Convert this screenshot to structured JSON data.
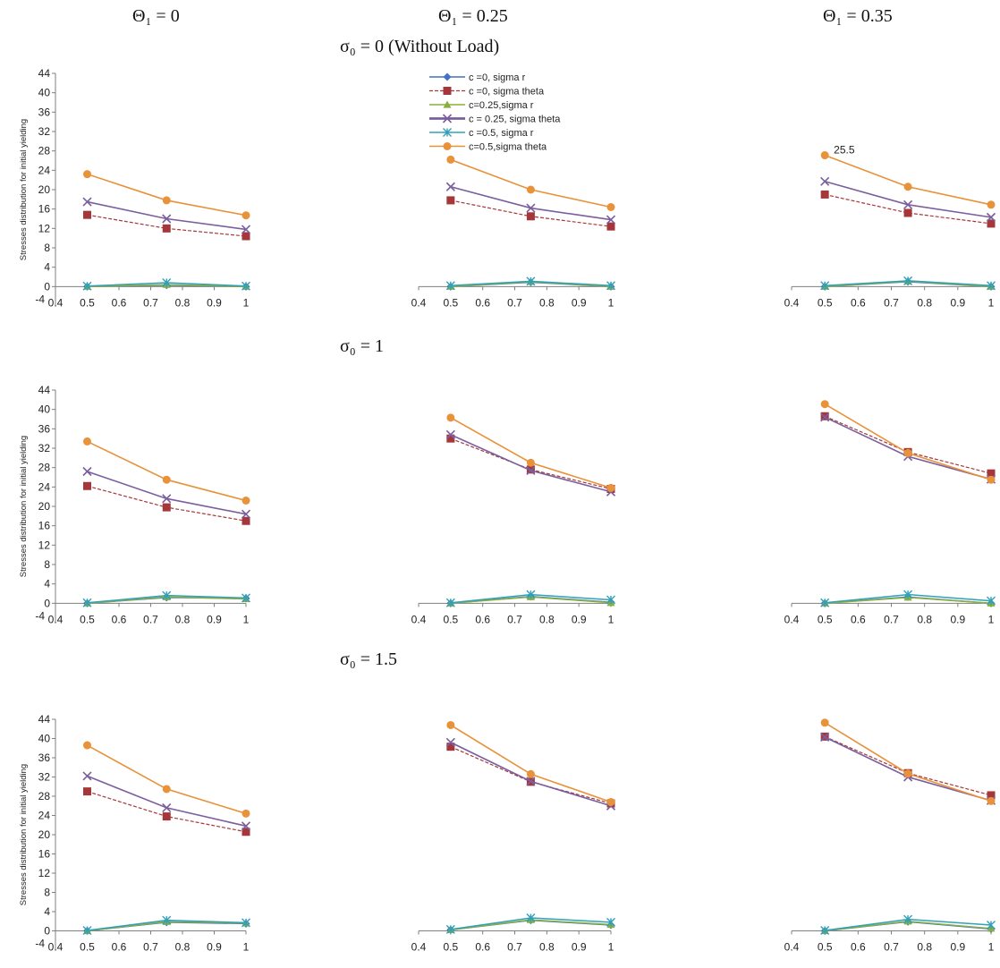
{
  "headers": {
    "col1": "Θ₁ = 0",
    "col2": "Θ₁ = 0.25",
    "col3": "Θ₁ = 0.35",
    "row1": "σ₀ = 0 (Without Load)",
    "row2": "σ₀ = 1",
    "row3": "σ₀ = 1.5"
  },
  "legend": [
    "c =0, sigma r",
    "c =0, sigma theta",
    "c=0.25,sigma r",
    "c = 0.25, sigma theta",
    "c =0.5, sigma r",
    "c=0.5,sigma theta"
  ],
  "series_style": [
    {
      "color": "#4472C4",
      "marker": "diamond",
      "dash": false,
      "width": 1.5
    },
    {
      "color": "#A5373A",
      "marker": "square",
      "dash": true,
      "width": 1.2
    },
    {
      "color": "#8AAF3C",
      "marker": "triangle",
      "dash": false,
      "width": 1.5
    },
    {
      "color": "#7A5E9E",
      "marker": "x",
      "dash": false,
      "width": 1.6
    },
    {
      "color": "#31A0B8",
      "marker": "star",
      "dash": false,
      "width": 1.5
    },
    {
      "color": "#E8923A",
      "marker": "circle",
      "dash": false,
      "width": 1.6
    }
  ],
  "chart_data": [
    {
      "type": "line",
      "x": [
        0.5,
        0.75,
        1
      ],
      "xlim": [
        0.4,
        1
      ],
      "ylim": [
        -4,
        44
      ],
      "xticks": [
        "0.4",
        "0.5",
        "0.6",
        "0.7",
        "0.8",
        "0.9",
        "1"
      ],
      "yticks": [
        "-4",
        "0",
        "4",
        "8",
        "12",
        "16",
        "20",
        "24",
        "28",
        "32",
        "36",
        "40",
        "44"
      ],
      "ylabel": "Stresses distribution   for initial  yielding",
      "series": [
        {
          "name": "c =0, sigma r",
          "values": [
            0,
            0.3,
            0
          ]
        },
        {
          "name": "c =0, sigma theta",
          "values": [
            14.8,
            12,
            10.4
          ]
        },
        {
          "name": "c=0.25,sigma r",
          "values": [
            0,
            0.4,
            0
          ]
        },
        {
          "name": "c = 0.25, sigma theta",
          "values": [
            17.5,
            14,
            11.8
          ]
        },
        {
          "name": "c =0.5, sigma r",
          "values": [
            0.1,
            0.8,
            0.1
          ]
        },
        {
          "name": "c=0.5,sigma theta",
          "values": [
            23.2,
            17.8,
            14.7
          ]
        }
      ],
      "annotation": ""
    },
    {
      "type": "line",
      "x": [
        0.5,
        0.75,
        1
      ],
      "xlim": [
        0.4,
        1
      ],
      "ylim": [
        -4,
        44
      ],
      "xticks": [
        "0.4",
        "0.5",
        "0.6",
        "0.7",
        "0.8",
        "0.9",
        "1"
      ],
      "yticks": [],
      "ylabel": "",
      "series": [
        {
          "name": "c =0, sigma r",
          "values": [
            0,
            0.9,
            0
          ]
        },
        {
          "name": "c =0, sigma theta",
          "values": [
            17.8,
            14.5,
            12.4
          ]
        },
        {
          "name": "c=0.25,sigma r",
          "values": [
            0,
            1,
            0
          ]
        },
        {
          "name": "c = 0.25, sigma theta",
          "values": [
            20.6,
            16.2,
            13.8
          ]
        },
        {
          "name": "c =0.5, sigma r",
          "values": [
            0.2,
            1.1,
            0.2
          ]
        },
        {
          "name": "c=0.5,sigma theta",
          "values": [
            26.2,
            20,
            16.4
          ]
        }
      ],
      "annotation": ""
    },
    {
      "type": "line",
      "x": [
        0.5,
        0.75,
        1
      ],
      "xlim": [
        0.4,
        1
      ],
      "ylim": [
        -4,
        44
      ],
      "xticks": [
        "0.4",
        "0.5",
        "0.6",
        "0.7",
        "0.8",
        "0.9",
        "1"
      ],
      "yticks": [],
      "ylabel": "",
      "series": [
        {
          "name": "c =0, sigma r",
          "values": [
            0,
            1,
            0
          ]
        },
        {
          "name": "c =0, sigma theta",
          "values": [
            19,
            15.2,
            13
          ]
        },
        {
          "name": "c=0.25,sigma r",
          "values": [
            0,
            1.1,
            0
          ]
        },
        {
          "name": "c = 0.25, sigma theta",
          "values": [
            21.7,
            16.9,
            14.3
          ]
        },
        {
          "name": "c =0.5, sigma r",
          "values": [
            0.2,
            1.2,
            0.2
          ]
        },
        {
          "name": "c=0.5,sigma theta",
          "values": [
            27.1,
            20.6,
            16.9
          ]
        }
      ],
      "annotation": "25.5"
    },
    {
      "type": "line",
      "x": [
        0.5,
        0.75,
        1
      ],
      "xlim": [
        0.4,
        1
      ],
      "ylim": [
        -4,
        44
      ],
      "xticks": [
        "0.4",
        "0.5",
        "0.6",
        "0.7",
        "0.8",
        "0.9",
        "1"
      ],
      "yticks": [
        "-4",
        "0",
        "4",
        "8",
        "12",
        "16",
        "20",
        "24",
        "28",
        "32",
        "36",
        "40",
        "44"
      ],
      "ylabel": "Stresses distribution for initial yielding",
      "series": [
        {
          "name": "c =0, sigma r",
          "values": [
            0,
            1.2,
            1
          ]
        },
        {
          "name": "c =0, sigma theta",
          "values": [
            24.2,
            19.8,
            17
          ]
        },
        {
          "name": "c=0.25,sigma r",
          "values": [
            0,
            1.3,
            0.9
          ]
        },
        {
          "name": "c = 0.25, sigma theta",
          "values": [
            27.2,
            21.6,
            18.4
          ]
        },
        {
          "name": "c =0.5, sigma r",
          "values": [
            0.1,
            1.6,
            1.1
          ]
        },
        {
          "name": "c=0.5,sigma theta",
          "values": [
            33.4,
            25.5,
            21.2
          ]
        }
      ],
      "annotation": ""
    },
    {
      "type": "line",
      "x": [
        0.5,
        0.75,
        1
      ],
      "xlim": [
        0.4,
        1
      ],
      "ylim": [
        -4,
        44
      ],
      "xticks": [
        "0.4",
        "0.5",
        "0.6",
        "0.7",
        "0.8",
        "0.9",
        "1"
      ],
      "yticks": [],
      "ylabel": "",
      "series": [
        {
          "name": "c =0, sigma r",
          "values": [
            0,
            1.4,
            0.2
          ]
        },
        {
          "name": "c =0, sigma theta",
          "values": [
            34,
            27.6,
            23.6
          ]
        },
        {
          "name": "c=0.25,sigma r",
          "values": [
            0,
            1.3,
            0.1
          ]
        },
        {
          "name": "c = 0.25, sigma theta",
          "values": [
            34.8,
            27.4,
            23
          ]
        },
        {
          "name": "c =0.5, sigma r",
          "values": [
            0.1,
            1.8,
            0.7
          ]
        },
        {
          "name": "c=0.5,sigma theta",
          "values": [
            38.3,
            29,
            23.8
          ]
        }
      ],
      "annotation": ""
    },
    {
      "type": "line",
      "x": [
        0.5,
        0.75,
        1
      ],
      "xlim": [
        0.4,
        1
      ],
      "ylim": [
        -4,
        44
      ],
      "xticks": [
        "0.4",
        "0.5",
        "0.6",
        "0.7",
        "0.8",
        "0.9",
        "1"
      ],
      "yticks": [],
      "ylabel": "",
      "series": [
        {
          "name": "c =0, sigma r",
          "values": [
            0,
            1.3,
            0
          ]
        },
        {
          "name": "c =0, sigma theta",
          "values": [
            38.6,
            31.2,
            26.8
          ]
        },
        {
          "name": "c=0.25,sigma r",
          "values": [
            0,
            1.2,
            0
          ]
        },
        {
          "name": "c = 0.25, sigma theta",
          "values": [
            38.4,
            30.3,
            25.6
          ]
        },
        {
          "name": "c =0.5, sigma r",
          "values": [
            0.1,
            1.8,
            0.5
          ]
        },
        {
          "name": "c=0.5,sigma theta",
          "values": [
            41.1,
            31,
            25.5
          ]
        }
      ],
      "annotation": ""
    },
    {
      "type": "line",
      "x": [
        0.5,
        0.75,
        1
      ],
      "xlim": [
        0.4,
        1
      ],
      "ylim": [
        -4,
        44
      ],
      "xticks": [
        "0.4",
        "0.5",
        "0.6",
        "0.7",
        "0.8",
        "0.9",
        "1"
      ],
      "yticks": [
        "-4",
        "0",
        "4",
        "8",
        "12",
        "16",
        "20",
        "24",
        "28",
        "32",
        "36",
        "40",
        "44"
      ],
      "ylabel": "Stresses distribution for initial yielding",
      "series": [
        {
          "name": "c =0, sigma r",
          "values": [
            0,
            1.8,
            1.5
          ]
        },
        {
          "name": "c =0, sigma theta",
          "values": [
            29,
            23.8,
            20.6
          ]
        },
        {
          "name": "c=0.25,sigma r",
          "values": [
            0,
            1.9,
            1.6
          ]
        },
        {
          "name": "c = 0.25, sigma theta",
          "values": [
            32.2,
            25.6,
            21.8
          ]
        },
        {
          "name": "c =0.5, sigma r",
          "values": [
            0.1,
            2.2,
            1.7
          ]
        },
        {
          "name": "c=0.5,sigma theta",
          "values": [
            38.6,
            29.5,
            24.4
          ]
        }
      ],
      "annotation": ""
    },
    {
      "type": "line",
      "x": [
        0.5,
        0.75,
        1
      ],
      "xlim": [
        0.4,
        1
      ],
      "ylim": [
        -4,
        44
      ],
      "xticks": [
        "0.4",
        "0.5",
        "0.6",
        "0.7",
        "0.8",
        "0.9",
        "1"
      ],
      "yticks": [],
      "ylabel": "",
      "series": [
        {
          "name": "c =0, sigma r",
          "values": [
            0.2,
            2.2,
            1.2
          ]
        },
        {
          "name": "c =0, sigma theta",
          "values": [
            38.3,
            31,
            26.5
          ]
        },
        {
          "name": "c=0.25,sigma r",
          "values": [
            0.2,
            2.3,
            1.3
          ]
        },
        {
          "name": "c = 0.25, sigma theta",
          "values": [
            39.2,
            31.1,
            26
          ]
        },
        {
          "name": "c =0.5, sigma r",
          "values": [
            0.3,
            2.7,
            1.8
          ]
        },
        {
          "name": "c=0.5,sigma theta",
          "values": [
            42.8,
            32.6,
            26.8
          ]
        }
      ],
      "annotation": ""
    },
    {
      "type": "line",
      "x": [
        0.5,
        0.75,
        1
      ],
      "xlim": [
        0.4,
        1
      ],
      "ylim": [
        -4,
        44
      ],
      "xticks": [
        "0.4",
        "0.5",
        "0.6",
        "0.7",
        "0.8",
        "0.9",
        "1"
      ],
      "yticks": [],
      "ylabel": "",
      "series": [
        {
          "name": "c =0, sigma r",
          "values": [
            0,
            1.9,
            0.4
          ]
        },
        {
          "name": "c =0, sigma theta",
          "values": [
            40.4,
            32.8,
            28.2
          ]
        },
        {
          "name": "c=0.25,sigma r",
          "values": [
            0,
            2,
            0.5
          ]
        },
        {
          "name": "c = 0.25, sigma theta",
          "values": [
            40.3,
            32,
            27.1
          ]
        },
        {
          "name": "c =0.5, sigma r",
          "values": [
            0.1,
            2.4,
            1.2
          ]
        },
        {
          "name": "c=0.5,sigma theta",
          "values": [
            43.3,
            32.7,
            27
          ]
        }
      ],
      "annotation": ""
    }
  ]
}
